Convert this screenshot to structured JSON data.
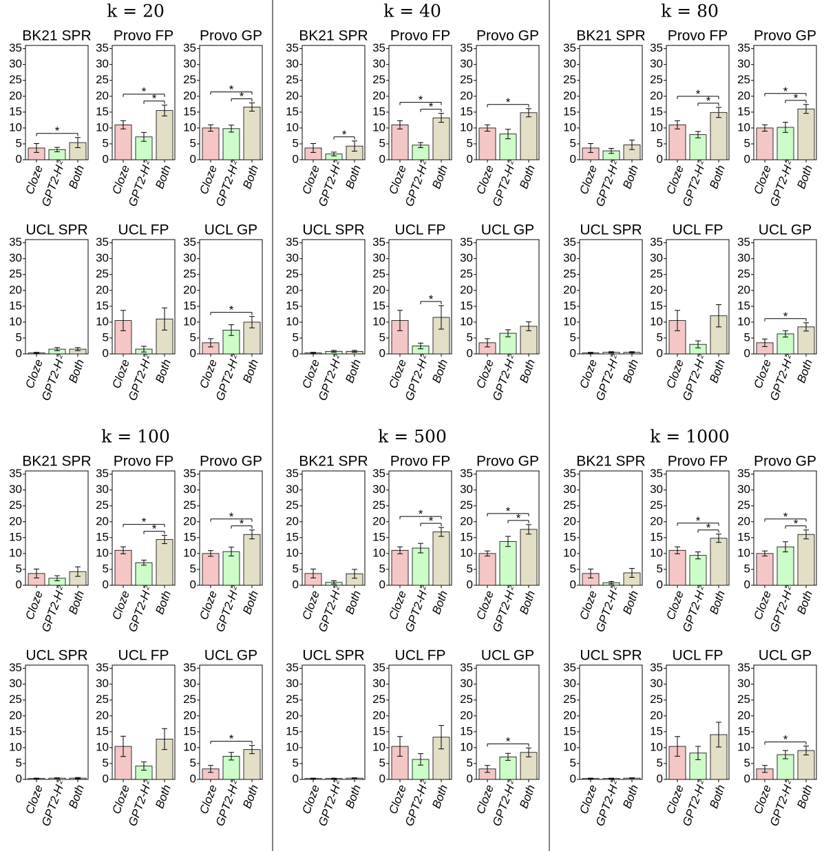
{
  "chart_data": {
    "type": "bar",
    "categories": [
      "Cloze",
      "GPT2-H",
      "Both"
    ],
    "category_superscripts": [
      "",
      "2",
      ""
    ],
    "ylim": [
      0,
      36
    ],
    "yticks": [
      0,
      5,
      10,
      15,
      20,
      25,
      30,
      35
    ],
    "grid": false,
    "colors": [
      "#f5c6c6",
      "#ccfcc8",
      "#e3dec6"
    ],
    "groups": [
      {
        "title": "k = 20",
        "panels": [
          {
            "title": "BK21 SPR",
            "values": [
              3.7,
              3.2,
              5.4
            ],
            "errors": [
              1.4,
              0.7,
              1.6
            ],
            "sig": [
              [
                0,
                2
              ]
            ]
          },
          {
            "title": "Provo FP",
            "values": [
              11.0,
              7.2,
              15.5
            ],
            "errors": [
              1.3,
              1.4,
              1.7
            ],
            "sig": [
              [
                0,
                2
              ],
              [
                1,
                2
              ]
            ]
          },
          {
            "title": "Provo GP",
            "values": [
              10.0,
              9.8,
              16.6
            ],
            "errors": [
              1.0,
              1.1,
              1.3
            ],
            "sig": [
              [
                0,
                2
              ],
              [
                1,
                2
              ]
            ]
          },
          {
            "title": "UCL SPR",
            "values": [
              0.3,
              1.5,
              1.5
            ],
            "errors": [
              0.2,
              0.5,
              0.5
            ],
            "sig": []
          },
          {
            "title": "UCL FP",
            "values": [
              10.5,
              1.5,
              11.0
            ],
            "errors": [
              3.2,
              0.9,
              3.5
            ],
            "sig": []
          },
          {
            "title": "UCL GP",
            "values": [
              3.5,
              7.5,
              10.0
            ],
            "errors": [
              1.3,
              1.7,
              1.8
            ],
            "sig": [
              [
                0,
                2
              ]
            ]
          }
        ]
      },
      {
        "title": "k = 40",
        "panels": [
          {
            "title": "BK21 SPR",
            "values": [
              3.7,
              1.8,
              4.3
            ],
            "errors": [
              1.4,
              0.6,
              1.6
            ],
            "sig": [
              [
                1,
                2
              ]
            ]
          },
          {
            "title": "Provo FP",
            "values": [
              11.0,
              4.6,
              13.2
            ],
            "errors": [
              1.3,
              0.8,
              1.4
            ],
            "sig": [
              [
                0,
                2
              ],
              [
                1,
                2
              ]
            ]
          },
          {
            "title": "Provo GP",
            "values": [
              10.0,
              8.1,
              14.8
            ],
            "errors": [
              1.0,
              1.5,
              1.3
            ],
            "sig": [
              [
                0,
                2
              ]
            ]
          },
          {
            "title": "UCL SPR",
            "values": [
              0.3,
              0.8,
              0.8
            ],
            "errors": [
              0.2,
              0.3,
              0.3
            ],
            "sig": []
          },
          {
            "title": "UCL FP",
            "values": [
              10.5,
              2.5,
              11.5
            ],
            "errors": [
              3.2,
              0.9,
              3.7
            ],
            "sig": [
              [
                1,
                2
              ]
            ]
          },
          {
            "title": "UCL GP",
            "values": [
              3.5,
              6.5,
              8.7
            ],
            "errors": [
              1.3,
              1.1,
              1.4
            ],
            "sig": []
          }
        ]
      },
      {
        "title": "k = 80",
        "panels": [
          {
            "title": "BK21 SPR",
            "values": [
              3.7,
              2.8,
              4.7
            ],
            "errors": [
              1.4,
              0.8,
              1.5
            ],
            "sig": []
          },
          {
            "title": "Provo FP",
            "values": [
              11.0,
              7.9,
              14.9
            ],
            "errors": [
              1.3,
              1.0,
              1.6
            ],
            "sig": [
              [
                0,
                2
              ],
              [
                1,
                2
              ]
            ]
          },
          {
            "title": "Provo GP",
            "values": [
              10.0,
              10.2,
              16.0
            ],
            "errors": [
              1.0,
              1.6,
              1.4
            ],
            "sig": [
              [
                0,
                2
              ],
              [
                1,
                2
              ]
            ]
          },
          {
            "title": "UCL SPR",
            "values": [
              0.3,
              0.5,
              0.5
            ],
            "errors": [
              0.2,
              0.2,
              0.2
            ],
            "sig": []
          },
          {
            "title": "UCL FP",
            "values": [
              10.5,
              3.0,
              12.0
            ],
            "errors": [
              3.2,
              1.1,
              3.5
            ],
            "sig": []
          },
          {
            "title": "UCL GP",
            "values": [
              3.5,
              6.3,
              8.5
            ],
            "errors": [
              1.2,
              1.0,
              1.3
            ],
            "sig": [
              [
                0,
                2
              ]
            ]
          }
        ]
      },
      {
        "title": "k = 100",
        "panels": [
          {
            "title": "BK21 SPR",
            "values": [
              3.7,
              2.2,
              4.3
            ],
            "errors": [
              1.4,
              0.8,
              1.5
            ],
            "sig": []
          },
          {
            "title": "Provo FP",
            "values": [
              11.0,
              7.1,
              14.4
            ],
            "errors": [
              1.1,
              0.8,
              1.3
            ],
            "sig": [
              [
                0,
                2
              ],
              [
                1,
                2
              ]
            ]
          },
          {
            "title": "Provo GP",
            "values": [
              10.0,
              10.6,
              16.0
            ],
            "errors": [
              0.9,
              1.4,
              1.4
            ],
            "sig": [
              [
                0,
                2
              ],
              [
                1,
                2
              ]
            ]
          },
          {
            "title": "UCL SPR",
            "values": [
              0.3,
              0.4,
              0.4
            ],
            "errors": [
              0.1,
              0.1,
              0.2
            ],
            "sig": []
          },
          {
            "title": "UCL FP",
            "values": [
              10.4,
              4.2,
              12.7
            ],
            "errors": [
              3.2,
              1.3,
              3.3
            ],
            "sig": []
          },
          {
            "title": "UCL GP",
            "values": [
              3.3,
              7.3,
              9.4
            ],
            "errors": [
              1.1,
              1.2,
              1.3
            ],
            "sig": [
              [
                0,
                2
              ]
            ]
          }
        ]
      },
      {
        "title": "k = 500",
        "panels": [
          {
            "title": "BK21 SPR",
            "values": [
              3.7,
              0.9,
              3.6
            ],
            "errors": [
              1.4,
              0.5,
              1.4
            ],
            "sig": []
          },
          {
            "title": "Provo FP",
            "values": [
              11.0,
              11.7,
              16.8
            ],
            "errors": [
              1.1,
              1.5,
              1.4
            ],
            "sig": [
              [
                0,
                2
              ],
              [
                1,
                2
              ]
            ]
          },
          {
            "title": "Provo GP",
            "values": [
              10.0,
              13.8,
              17.6
            ],
            "errors": [
              0.8,
              1.6,
              1.5
            ],
            "sig": [
              [
                0,
                2
              ],
              [
                1,
                2
              ]
            ]
          },
          {
            "title": "UCL SPR",
            "values": [
              0.3,
              0.3,
              0.4
            ],
            "errors": [
              0.1,
              0.1,
              0.1
            ],
            "sig": []
          },
          {
            "title": "UCL FP",
            "values": [
              10.4,
              6.3,
              13.3
            ],
            "errors": [
              3.1,
              1.8,
              3.7
            ],
            "sig": []
          },
          {
            "title": "UCL GP",
            "values": [
              3.3,
              7.1,
              8.5
            ],
            "errors": [
              1.1,
              1.1,
              1.4
            ],
            "sig": [
              [
                0,
                2
              ]
            ]
          }
        ]
      },
      {
        "title": "k = 1000",
        "panels": [
          {
            "title": "BK21 SPR",
            "values": [
              3.7,
              0.8,
              3.9
            ],
            "errors": [
              1.4,
              0.4,
              1.4
            ],
            "sig": []
          },
          {
            "title": "Provo FP",
            "values": [
              11.0,
              9.4,
              14.8
            ],
            "errors": [
              1.1,
              1.1,
              1.3
            ],
            "sig": [
              [
                0,
                2
              ],
              [
                1,
                2
              ]
            ]
          },
          {
            "title": "Provo GP",
            "values": [
              10.0,
              12.1,
              16.0
            ],
            "errors": [
              0.8,
              1.6,
              1.4
            ],
            "sig": [
              [
                0,
                2
              ],
              [
                1,
                2
              ]
            ]
          },
          {
            "title": "UCL SPR",
            "values": [
              0.3,
              0.3,
              0.4
            ],
            "errors": [
              0.1,
              0.1,
              0.1
            ],
            "sig": []
          },
          {
            "title": "UCL FP",
            "values": [
              10.4,
              8.3,
              14.1
            ],
            "errors": [
              3.1,
              2.1,
              3.9
            ],
            "sig": []
          },
          {
            "title": "UCL GP",
            "values": [
              3.3,
              7.8,
              9.1
            ],
            "errors": [
              1.1,
              1.3,
              1.4
            ],
            "sig": [
              [
                0,
                2
              ]
            ]
          }
        ]
      }
    ],
    "significance_marker": "*"
  }
}
